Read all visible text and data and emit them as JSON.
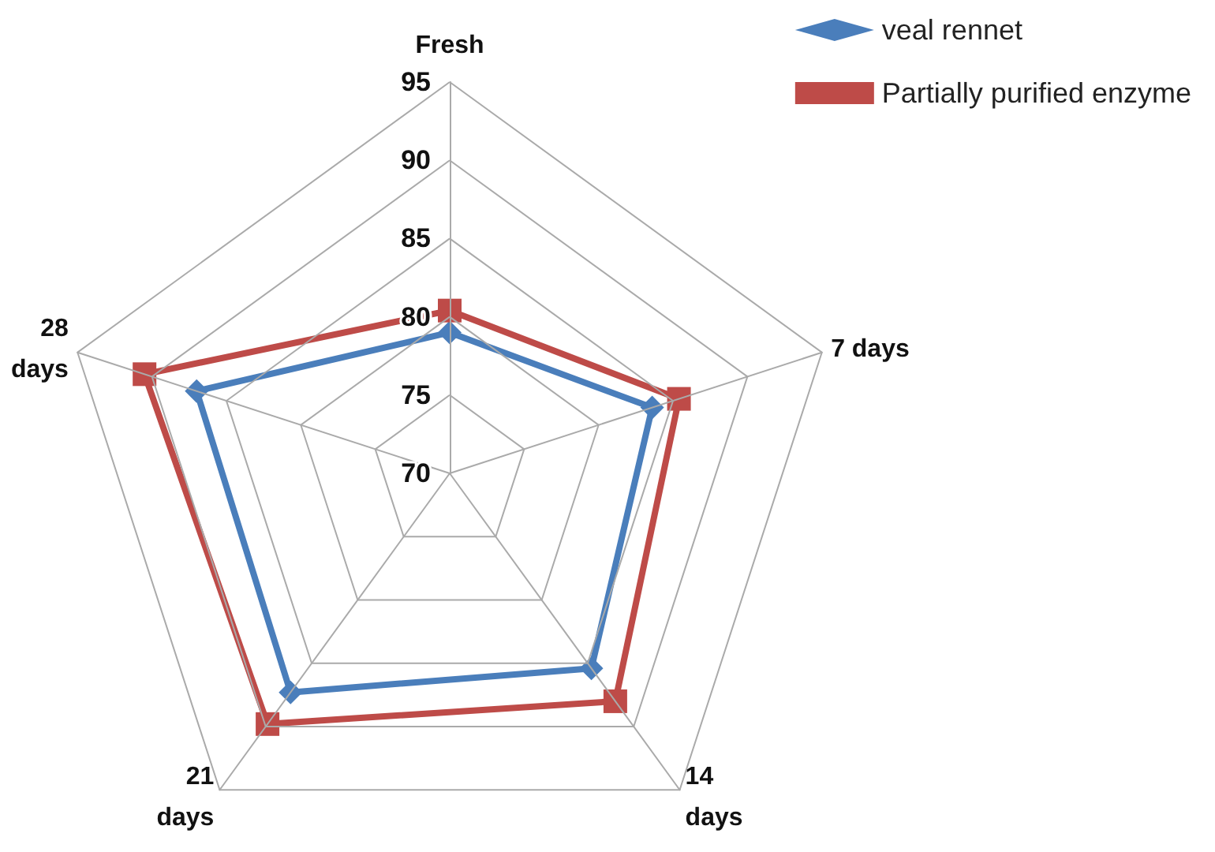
{
  "chart_data": {
    "type": "radar",
    "categories": [
      "Fresh",
      "7 days",
      "14\ndays",
      "21\ndays",
      "28\ndays"
    ],
    "series": [
      {
        "name": "veal rennet",
        "color": "#4a7ebb",
        "marker": "diamond",
        "values": [
          79,
          83.6,
          85.4,
          87.3,
          87
        ]
      },
      {
        "name": "Partially purified enzyme",
        "color": "#be4b48",
        "marker": "square",
        "values": [
          80.4,
          85.4,
          88,
          89.8,
          90.5
        ]
      }
    ],
    "ylim": [
      70,
      95
    ],
    "yticks": [
      70,
      75,
      80,
      85,
      90,
      95
    ],
    "grid": true,
    "legend": "top right"
  }
}
